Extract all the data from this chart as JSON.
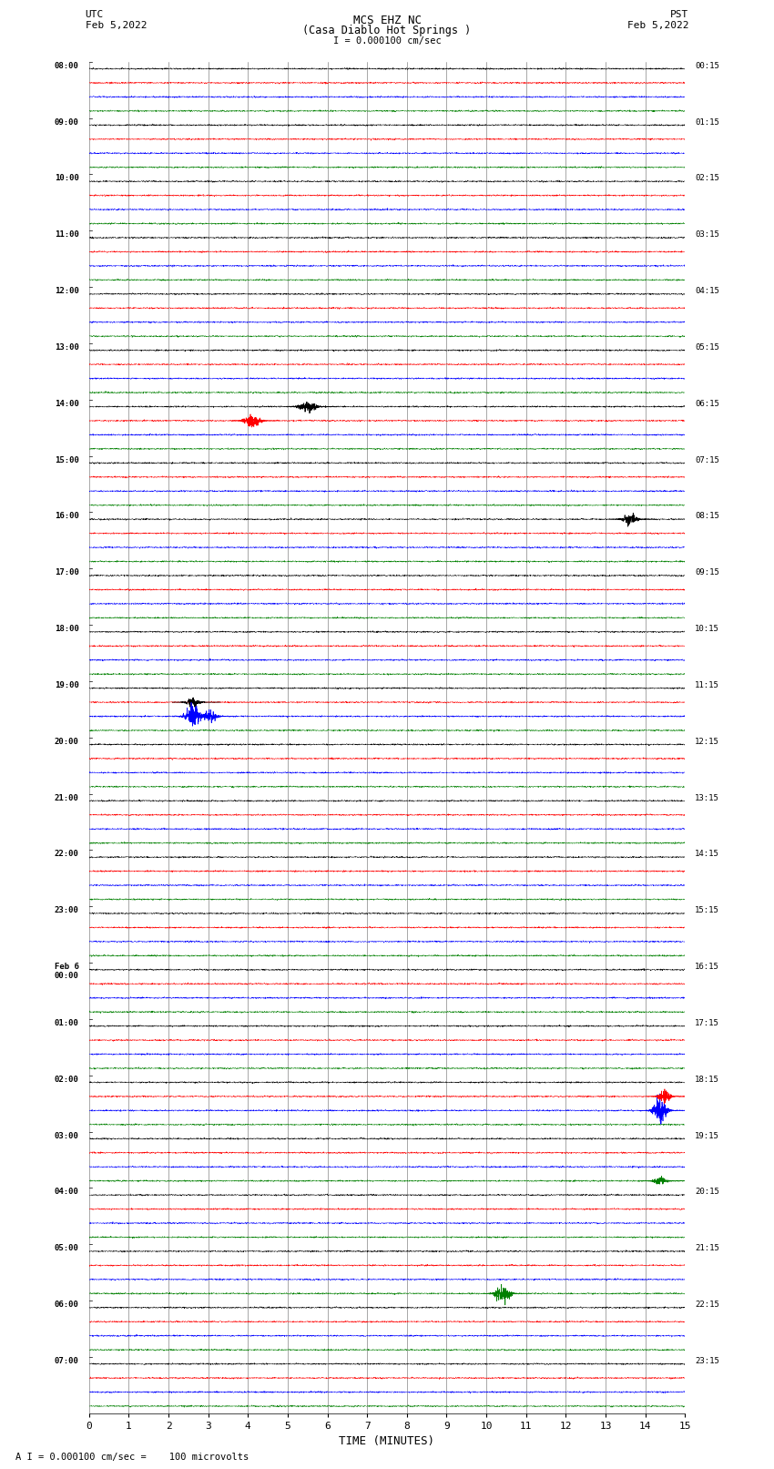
{
  "title_line1": "MCS EHZ NC",
  "title_line2": "(Casa Diablo Hot Springs )",
  "scale_label": "I = 0.000100 cm/sec",
  "left_date_label": "UTC\nFeb 5,2022",
  "right_date_label": "PST\nFeb 5,2022",
  "xlabel": "TIME (MINUTES)",
  "footer_label": "A I = 0.000100 cm/sec =    100 microvolts",
  "xlim": [
    0,
    15
  ],
  "xticks": [
    0,
    1,
    2,
    3,
    4,
    5,
    6,
    7,
    8,
    9,
    10,
    11,
    12,
    13,
    14,
    15
  ],
  "left_labels": [
    "08:00",
    "09:00",
    "10:00",
    "11:00",
    "12:00",
    "13:00",
    "14:00",
    "15:00",
    "16:00",
    "17:00",
    "18:00",
    "19:00",
    "20:00",
    "21:00",
    "22:00",
    "23:00",
    "Feb 6\n00:00",
    "01:00",
    "02:00",
    "03:00",
    "04:00",
    "05:00",
    "06:00",
    "07:00"
  ],
  "right_labels": [
    "00:15",
    "01:15",
    "02:15",
    "03:15",
    "04:15",
    "05:15",
    "06:15",
    "07:15",
    "08:15",
    "09:15",
    "10:15",
    "11:15",
    "12:15",
    "13:15",
    "14:15",
    "15:15",
    "16:15",
    "17:15",
    "18:15",
    "19:15",
    "20:15",
    "21:15",
    "22:15",
    "23:15"
  ],
  "trace_colors": [
    "black",
    "red",
    "blue",
    "green"
  ],
  "n_hours": 24,
  "traces_per_hour": 4,
  "bg_color": "#ffffff",
  "noise_amplitude": 0.025,
  "special_events": [
    {
      "hour": 6,
      "trace": 1,
      "x": 4.0,
      "amp": 3.5,
      "color": "red"
    },
    {
      "hour": 6,
      "trace": 0,
      "x": 5.3,
      "amp": 2.0,
      "color": "black"
    },
    {
      "hour": 6,
      "trace": 0,
      "x": 5.45,
      "amp": 2.5,
      "color": "black"
    },
    {
      "hour": 11,
      "trace": 1,
      "x": 2.5,
      "amp": 2.0,
      "color": "black"
    },
    {
      "hour": 11,
      "trace": 2,
      "x": 2.5,
      "amp": 5.0,
      "color": "blue"
    },
    {
      "hour": 11,
      "trace": 2,
      "x": 2.9,
      "amp": 3.0,
      "color": "blue"
    },
    {
      "hour": 8,
      "trace": 0,
      "x": 13.5,
      "amp": 2.5,
      "color": "black"
    },
    {
      "hour": 18,
      "trace": 2,
      "x": 14.3,
      "amp": 6.0,
      "color": "blue"
    },
    {
      "hour": 18,
      "trace": 1,
      "x": 14.5,
      "amp": 3.0,
      "color": "red"
    },
    {
      "hour": 19,
      "trace": 3,
      "x": 14.3,
      "amp": 2.0,
      "color": "green"
    },
    {
      "hour": 21,
      "trace": 3,
      "x": 10.3,
      "amp": 4.0,
      "color": "green"
    }
  ]
}
